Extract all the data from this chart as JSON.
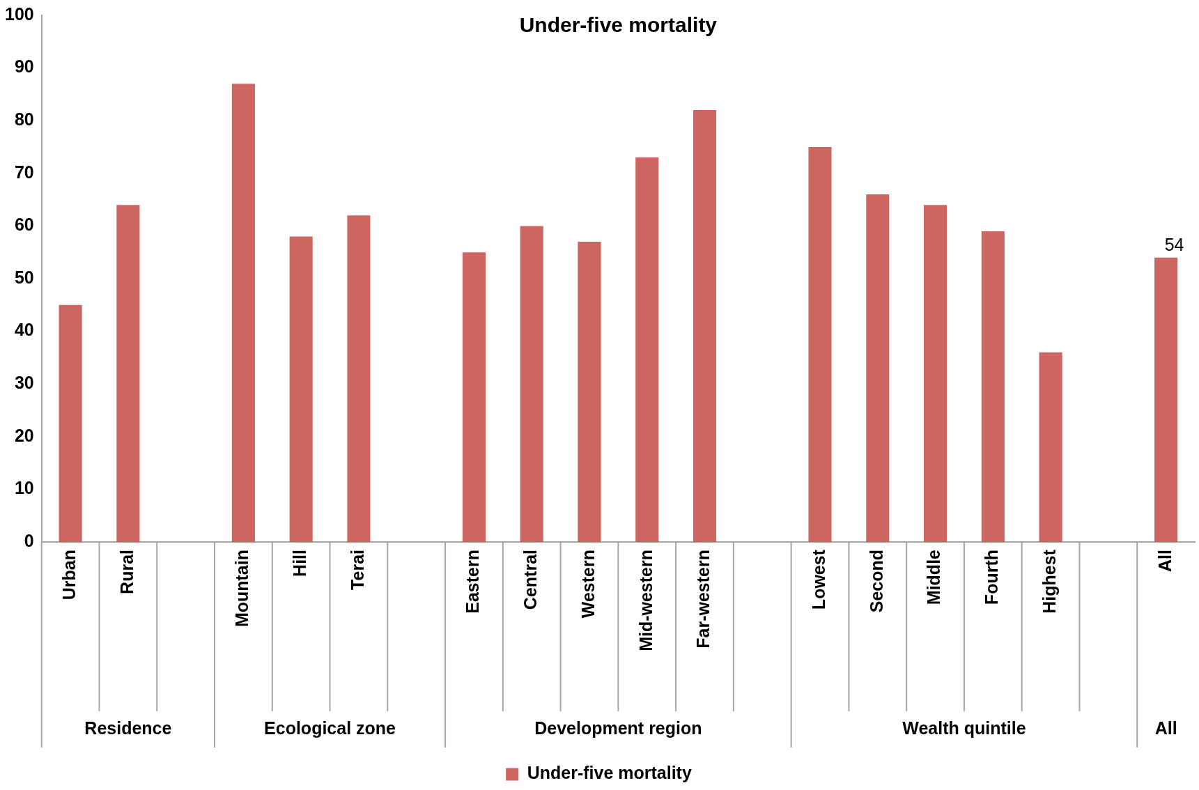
{
  "chart_data": {
    "type": "bar",
    "title": "Under-five mortality",
    "categories": [
      "Urban",
      "Rural",
      null,
      "Mountain",
      "Hill",
      "Terai",
      null,
      "Eastern",
      "Central",
      "Western",
      "Mid-western",
      "Far-western",
      null,
      "Lowest",
      "Second",
      "Middle",
      "Fourth",
      "Highest",
      null,
      "All"
    ],
    "series": [
      {
        "name": "Under-five mortality",
        "color": "#cd6660",
        "values": [
          45,
          64,
          null,
          87,
          58,
          62,
          null,
          55,
          60,
          57,
          73,
          82,
          null,
          75,
          66,
          64,
          59,
          36,
          null,
          54
        ],
        "value_labels": [
          null,
          null,
          null,
          null,
          null,
          null,
          null,
          null,
          null,
          null,
          null,
          null,
          null,
          null,
          null,
          null,
          null,
          null,
          null,
          "54"
        ]
      }
    ],
    "annotations": [
      "Residence",
      "Ecological zone",
      "Development region",
      "Wealth quintile",
      "All"
    ],
    "ylim": [
      0,
      100
    ],
    "yticks": [
      0,
      10,
      20,
      30,
      40,
      50,
      60,
      70,
      80,
      90,
      100
    ],
    "grid": false,
    "legend": "bottom"
  }
}
